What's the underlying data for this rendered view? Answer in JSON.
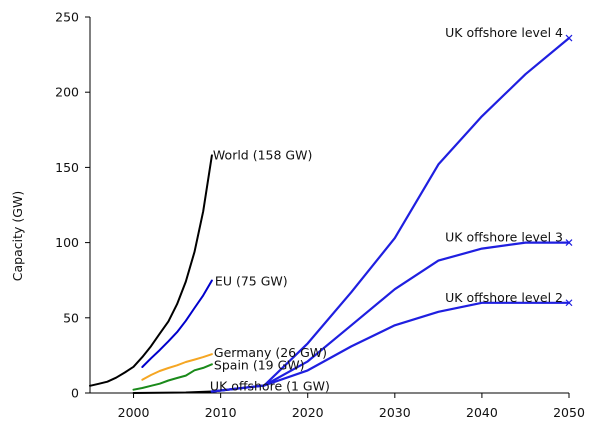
{
  "chart_data": {
    "type": "line",
    "ylabel": "Capacity (GW)",
    "xlabel": "",
    "xlim": [
      1995,
      2050
    ],
    "ylim": [
      0,
      250
    ],
    "xticks": [
      2000,
      2010,
      2020,
      2030,
      2040,
      2050
    ],
    "yticks": [
      0,
      50,
      100,
      150,
      200,
      250
    ],
    "grid": false,
    "legend": "none",
    "series": [
      {
        "name": "World (158 GW)",
        "color": "#000000",
        "points": [
          [
            1995,
            4.8
          ],
          [
            1996,
            6.1
          ],
          [
            1997,
            7.5
          ],
          [
            1998,
            10.2
          ],
          [
            1999,
            13.6
          ],
          [
            2000,
            17.4
          ],
          [
            2001,
            23.9
          ],
          [
            2002,
            31.1
          ],
          [
            2003,
            39.4
          ],
          [
            2004,
            47.6
          ],
          [
            2005,
            59.1
          ],
          [
            2006,
            74.1
          ],
          [
            2007,
            93.8
          ],
          [
            2008,
            120.8
          ],
          [
            2009,
            158.0
          ]
        ]
      },
      {
        "name": "EU (75 GW)",
        "color": "#0000cc",
        "points": [
          [
            2001,
            17.3
          ],
          [
            2002,
            23.1
          ],
          [
            2003,
            28.5
          ],
          [
            2004,
            34.4
          ],
          [
            2005,
            40.5
          ],
          [
            2006,
            48.0
          ],
          [
            2007,
            56.5
          ],
          [
            2008,
            64.9
          ],
          [
            2009,
            74.8
          ]
        ]
      },
      {
        "name": "Germany (26 GW)",
        "color": "#f5a623",
        "points": [
          [
            2001,
            8.8
          ],
          [
            2002,
            12.0
          ],
          [
            2003,
            14.6
          ],
          [
            2004,
            16.6
          ],
          [
            2005,
            18.4
          ],
          [
            2006,
            20.6
          ],
          [
            2007,
            22.2
          ],
          [
            2008,
            23.9
          ],
          [
            2009,
            25.8
          ]
        ]
      },
      {
        "name": "Spain (19 GW)",
        "color": "#1a8a1a",
        "points": [
          [
            2000,
            2.2
          ],
          [
            2001,
            3.3
          ],
          [
            2002,
            4.8
          ],
          [
            2003,
            6.2
          ],
          [
            2004,
            8.3
          ],
          [
            2005,
            10.0
          ],
          [
            2006,
            11.6
          ],
          [
            2007,
            15.1
          ],
          [
            2008,
            16.7
          ],
          [
            2009,
            19.1
          ]
        ]
      },
      {
        "name": "UK offshore (1 GW)",
        "color": "#000000",
        "points": [
          [
            2000,
            0.0
          ],
          [
            2003,
            0.1
          ],
          [
            2006,
            0.3
          ],
          [
            2009,
            1.0
          ]
        ]
      },
      {
        "name": "UK offshore level 2",
        "color": "#1f1fe0",
        "points": [
          [
            2009,
            1.0
          ],
          [
            2015,
            5.0
          ],
          [
            2020,
            15.0
          ],
          [
            2025,
            31.0
          ],
          [
            2030,
            45.0
          ],
          [
            2035,
            54.0
          ],
          [
            2040,
            60.0
          ],
          [
            2045,
            60.0
          ],
          [
            2050,
            60.0
          ]
        ]
      },
      {
        "name": "UK offshore level 3",
        "color": "#1f1fe0",
        "points": [
          [
            2009,
            1.0
          ],
          [
            2015,
            5.0
          ],
          [
            2020,
            21.0
          ],
          [
            2025,
            45.0
          ],
          [
            2030,
            69.0
          ],
          [
            2035,
            88.0
          ],
          [
            2040,
            96.0
          ],
          [
            2045,
            100.0
          ],
          [
            2050,
            100.0
          ]
        ]
      },
      {
        "name": "UK offshore level 4",
        "color": "#1f1fe0",
        "points": [
          [
            2009,
            1.0
          ],
          [
            2015,
            5.0
          ],
          [
            2020,
            33.0
          ],
          [
            2025,
            67.0
          ],
          [
            2030,
            103.0
          ],
          [
            2035,
            152.0
          ],
          [
            2040,
            184.0
          ],
          [
            2045,
            212.0
          ],
          [
            2050,
            236.0
          ]
        ]
      }
    ]
  }
}
